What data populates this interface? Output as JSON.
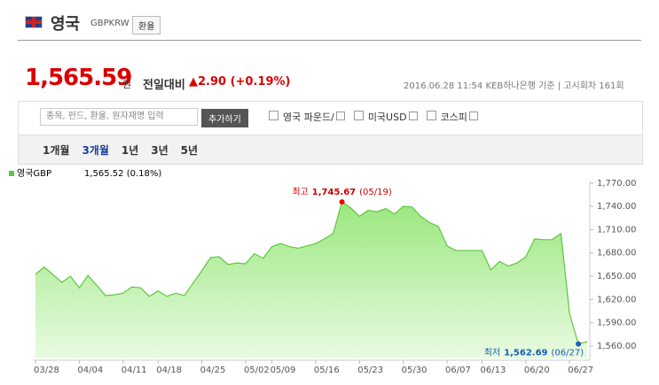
{
  "header": {
    "name": "영국",
    "code": "GBPKRW",
    "tag": "환율"
  },
  "quote": {
    "price": "1,565.59",
    "unit": "원",
    "change_label": "전일대비",
    "change": "▲2.90 (+0.19%)",
    "date": "2016.06.28 11:54",
    "source": "KEB하나은행 기준",
    "round": "고시회차 161회"
  },
  "toolbar": {
    "placeholder": "종목, 펀드, 환율, 원자재명 입력",
    "button": "추가하기",
    "compare": [
      "영국 파운드/",
      "미국USD",
      "코스피"
    ]
  },
  "tabs": {
    "items": [
      "1개월",
      "3개월",
      "1년",
      "3년",
      "5년"
    ],
    "selected": 1
  },
  "chart_data": {
    "type": "area",
    "legend_value": "1,565.52 (0.18%)",
    "categories": [
      "03/28",
      null,
      null,
      null,
      null,
      "04/04",
      null,
      null,
      null,
      null,
      "04/11",
      null,
      null,
      null,
      "04/18",
      null,
      null,
      null,
      null,
      "04/25",
      null,
      null,
      null,
      null,
      "05/02",
      null,
      null,
      "05/09",
      null,
      null,
      null,
      null,
      "05/16",
      null,
      null,
      null,
      null,
      "05/23",
      null,
      null,
      null,
      null,
      "05/30",
      null,
      null,
      null,
      null,
      "06/07",
      null,
      null,
      null,
      "06/13",
      null,
      null,
      null,
      null,
      "06/20",
      null,
      null,
      null,
      null,
      "06/27",
      null,
      null
    ],
    "series": [
      {
        "name": "영국GBP",
        "color": "#5bc83c",
        "values": [
          1652.6,
          1661.7,
          1652,
          1642,
          1650,
          1635,
          1651,
          1638,
          1625,
          1626,
          1628,
          1636,
          1635,
          1624,
          1631,
          1624,
          1628,
          1625,
          1641,
          1657,
          1674,
          1675,
          1665,
          1667,
          1666,
          1679,
          1673,
          1688,
          1692,
          1688,
          1686,
          1689,
          1692,
          1698,
          1705,
          1745.67,
          1738,
          1727,
          1735,
          1733,
          1737,
          1730,
          1740,
          1739,
          1727,
          1719,
          1714,
          1689,
          1683,
          1683,
          1683,
          1683,
          1658,
          1669,
          1663,
          1667,
          1675,
          1698,
          1697,
          1697,
          1705,
          1601,
          1562.69,
          1565.52
        ]
      }
    ],
    "annotations": [
      {
        "text": "최고",
        "label": "1,745.67",
        "date": "(05/19)"
      },
      {
        "text": "최저",
        "label": "1,562.69",
        "date": "(06/27)"
      }
    ],
    "ylim": [
      1544,
      1772
    ],
    "yticks": [
      {
        "value": 1560,
        "label": "1,560.00"
      },
      {
        "value": 1590,
        "label": "1,590.00"
      },
      {
        "value": 1620,
        "label": "1,620.00"
      },
      {
        "value": 1650,
        "label": "1,650.00"
      },
      {
        "value": 1680,
        "label": "1,680.00"
      },
      {
        "value": 1710,
        "label": "1,710.00"
      },
      {
        "value": 1740,
        "label": "1,740.00"
      },
      {
        "value": 1770,
        "label": "1,770.00"
      }
    ]
  }
}
